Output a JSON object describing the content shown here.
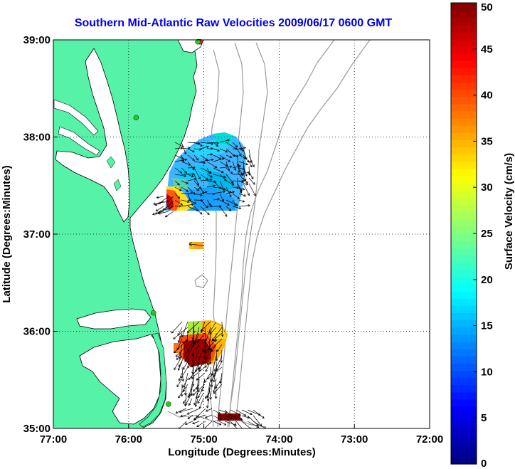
{
  "title": "Southern Mid-Atlantic Raw Velocities 2009/06/17 0600 GMT",
  "map": {
    "xlabel": "Longitude (Degrees:Minutes)",
    "ylabel": "Latitude (Degrees:Minutes)",
    "lon_range": [
      -77,
      -72
    ],
    "lat_range": [
      35,
      39
    ],
    "lon_ticks": [
      {
        "value": -77,
        "label": "77:00"
      },
      {
        "value": -76,
        "label": "76:00"
      },
      {
        "value": -75,
        "label": "75:00"
      },
      {
        "value": -74,
        "label": "74:00"
      },
      {
        "value": -73,
        "label": "73:00"
      },
      {
        "value": -72,
        "label": "72:00"
      }
    ],
    "lat_ticks": [
      {
        "value": 35,
        "label": "35:00"
      },
      {
        "value": 36,
        "label": "36:00"
      },
      {
        "value": 37,
        "label": "37:00"
      },
      {
        "value": 38,
        "label": "38:00"
      },
      {
        "value": 39,
        "label": "39:00"
      }
    ],
    "grid": "dotted",
    "land_color": "#55f2a8",
    "ocean_color": "#ffffff",
    "coastline_color": "#000000",
    "bathymetry_color": "#9a9a9a"
  },
  "colorbar": {
    "label": "Surface Velocity (cm/s)",
    "min": 0,
    "max": 50,
    "ticks": [
      0,
      5,
      10,
      15,
      20,
      25,
      30,
      35,
      40,
      45,
      50
    ],
    "colormap": "jet"
  },
  "stations": [
    {
      "lon": -75.05,
      "lat": 38.98,
      "color": "#ff2020"
    },
    {
      "lon": -75.08,
      "lat": 38.98,
      "color": "#22cc22"
    },
    {
      "lon": -75.9,
      "lat": 38.2,
      "color": "#22cc22"
    },
    {
      "lon": -75.67,
      "lat": 36.19,
      "color": "#22cc22"
    },
    {
      "lon": -75.47,
      "lat": 35.25,
      "color": "#22cc22"
    }
  ]
}
